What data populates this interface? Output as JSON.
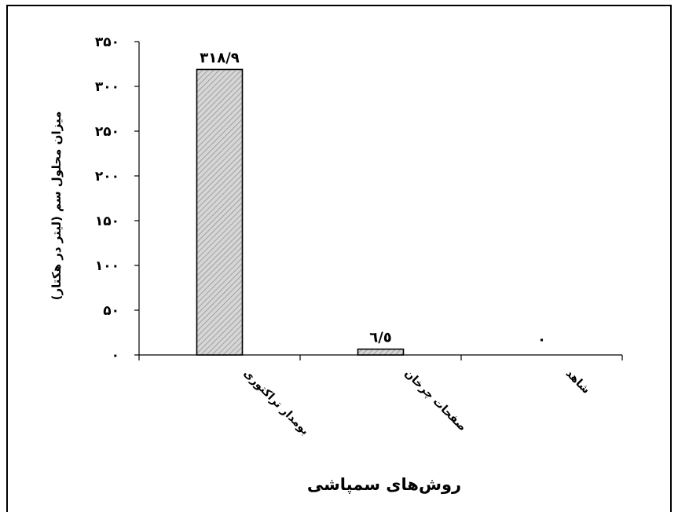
{
  "chart_data": {
    "type": "bar",
    "xlabel": "روش‌های سمپاشی",
    "ylabel": "میزان محلول سم (لیتر در هکتار)",
    "ylim": [
      0,
      350
    ],
    "yticks": [
      0,
      50,
      100,
      150,
      200,
      250,
      300,
      350
    ],
    "ytick_labels": [
      "۰",
      "۵۰",
      "۱۰۰",
      "۱۵۰",
      "۲۰۰",
      "۲۵۰",
      "۳۰۰",
      "۳۵۰"
    ],
    "categories": [
      "بومدار تراکتوری",
      "صفحات چرخان",
      "شاهد"
    ],
    "values": [
      318.9,
      6.5,
      0
    ],
    "data_labels": [
      "۳۱۸/۹",
      "٦/٥",
      "۰"
    ],
    "bar_fill": "#c8c8c8",
    "bar_stroke": "#000000",
    "grid": false,
    "legend": "none"
  }
}
